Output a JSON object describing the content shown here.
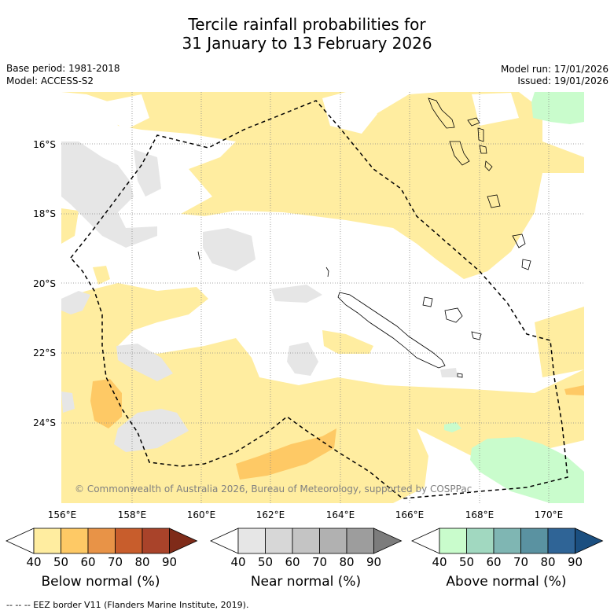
{
  "title_line1": "Tercile rainfall probabilities for",
  "title_line2": "31 January to 13 February 2026",
  "base_period": "Base period: 1981-2018",
  "model": "Model: ACCESS-S2",
  "model_run": "Model run: 17/01/2026",
  "issued": "Issued: 19/01/2026",
  "lat_labels": [
    "16°S",
    "18°S",
    "20°S",
    "22°S",
    "24°S"
  ],
  "lon_labels": [
    "156°E",
    "158°E",
    "160°E",
    "162°E",
    "164°E",
    "166°E",
    "168°E",
    "170°E"
  ],
  "copyright": "© Commonwealth of Australia 2026, Bureau of Meteorology, supported by COSPPac",
  "colorbars": [
    {
      "name": "below",
      "label": "Below normal (%)",
      "ticks": [
        "40",
        "50",
        "60",
        "70",
        "80",
        "90"
      ],
      "colors": [
        "#ffffff",
        "#ffeda0",
        "#fec965",
        "#e89347",
        "#c85d2c",
        "#a9432a",
        "#7f2b19"
      ]
    },
    {
      "name": "near",
      "label": "Near normal (%)",
      "ticks": [
        "40",
        "50",
        "60",
        "70",
        "80",
        "90"
      ],
      "colors": [
        "#ffffff",
        "#e6e6e6",
        "#d7d7d7",
        "#c4c4c4",
        "#b1b1b1",
        "#9d9d9d",
        "#7c7c7c"
      ]
    },
    {
      "name": "above",
      "label": "Above normal (%)",
      "ticks": [
        "40",
        "50",
        "60",
        "70",
        "80",
        "90"
      ],
      "colors": [
        "#ffffff",
        "#c9fccc",
        "#a1d8c0",
        "#7fb6b3",
        "#5a92a1",
        "#2f6496",
        "#1b4f80"
      ]
    }
  ],
  "footer": "-- -- -- EEZ border V11 (Flanders Marine Institute, 2019).",
  "colors": {
    "below_50": "#ffeda0",
    "below_60": "#fec965",
    "near_50": "#e6e6e6",
    "above_50": "#c9fccc"
  }
}
